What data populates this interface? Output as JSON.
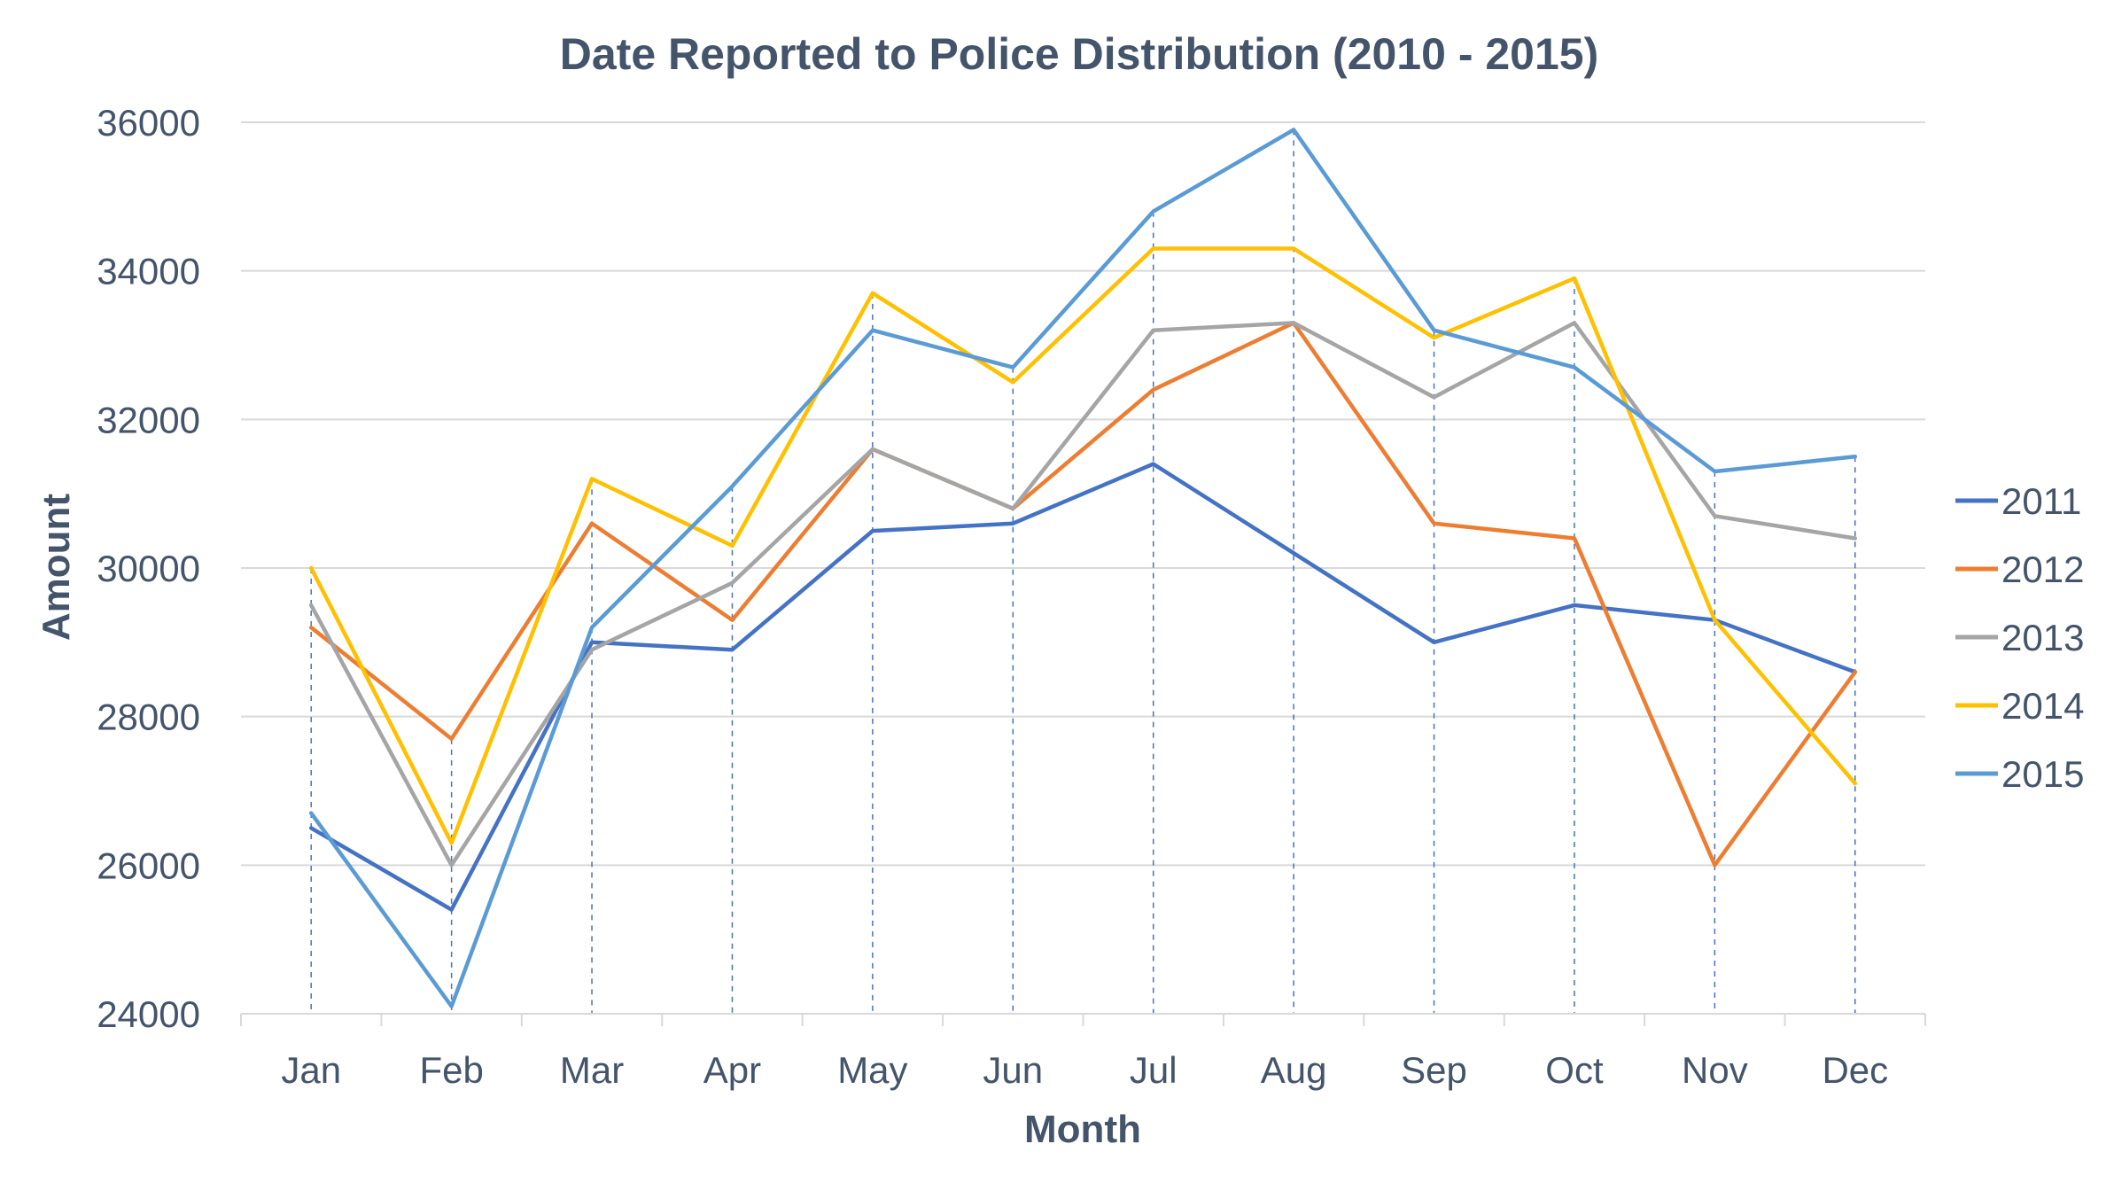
{
  "chart_data": {
    "type": "line",
    "title": "Date Reported to Police Distribution (2010 - 2015)",
    "xlabel": "Month",
    "ylabel": "Amount",
    "categories": [
      "Jan",
      "Feb",
      "Mar",
      "Apr",
      "May",
      "Jun",
      "Jul",
      "Aug",
      "Sep",
      "Oct",
      "Nov",
      "Dec"
    ],
    "ylim": [
      24000,
      36000
    ],
    "yticks": [
      "24000",
      "26000",
      "28000",
      "30000",
      "32000",
      "34000",
      "36000"
    ],
    "grid": true,
    "legend": "right",
    "series": [
      {
        "name": "2011",
        "color": "#4472c4",
        "values": [
          26500,
          25400,
          29000,
          28900,
          30500,
          30600,
          31400,
          30200,
          29000,
          29500,
          29300,
          28600
        ]
      },
      {
        "name": "2012",
        "color": "#ed7d31",
        "values": [
          29200,
          27700,
          30600,
          29300,
          31600,
          30800,
          32400,
          33300,
          30600,
          30400,
          26000,
          28600
        ]
      },
      {
        "name": "2013",
        "color": "#a5a5a5",
        "values": [
          29500,
          26000,
          28900,
          29800,
          31600,
          30800,
          33200,
          33300,
          32300,
          33300,
          30700,
          30400
        ]
      },
      {
        "name": "2014",
        "color": "#ffc000",
        "values": [
          30000,
          26300,
          31200,
          30300,
          33700,
          32500,
          34300,
          34300,
          33100,
          33900,
          29300,
          27100
        ]
      },
      {
        "name": "2015",
        "color": "#5b9bd5",
        "values": [
          26700,
          24100,
          29200,
          31100,
          33200,
          32700,
          34800,
          35900,
          33200,
          32700,
          31300,
          31500
        ]
      }
    ]
  }
}
